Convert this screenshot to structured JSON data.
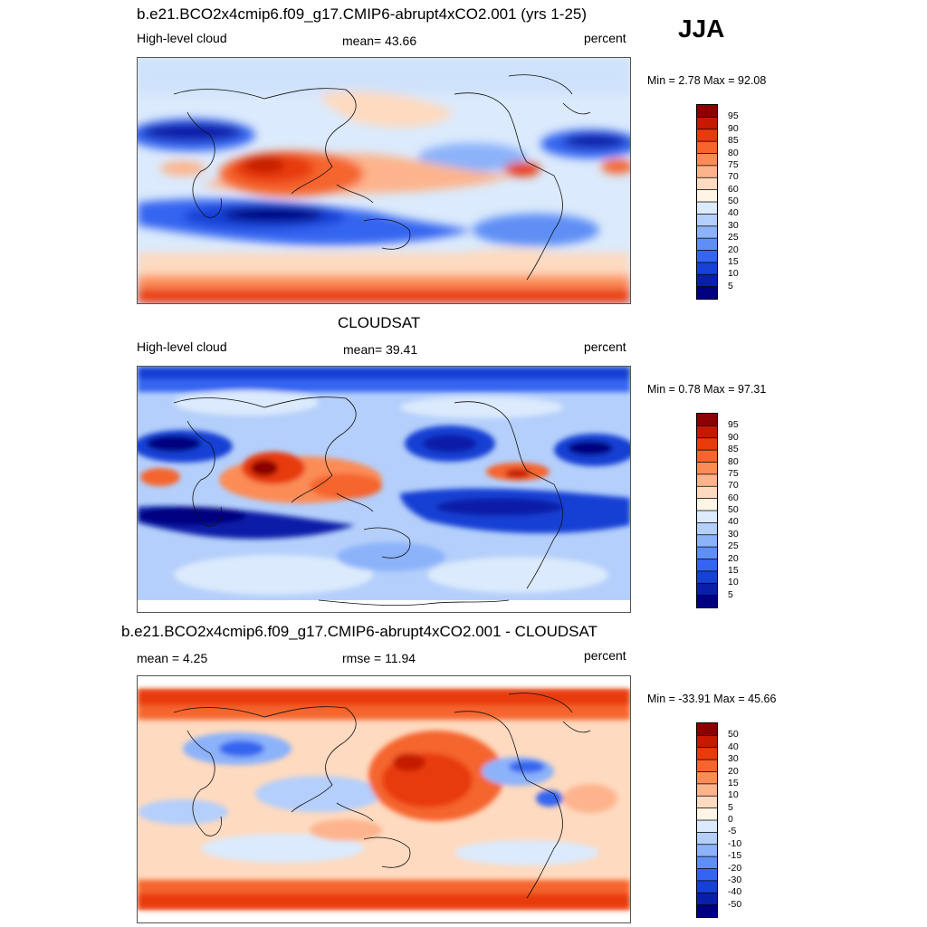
{
  "season": "JJA",
  "panels": [
    {
      "title": "b.e21.BCO2x4cmip6.f09_g17.CMIP6-abrupt4xCO2.001 (yrs 1-25)",
      "left_label": "High-level cloud",
      "center_label": "mean=  43.66",
      "right_label": "percent",
      "minmax": "Min =   2.78 Max =  92.08",
      "levels": [
        "95",
        "90",
        "85",
        "80",
        "75",
        "70",
        "60",
        "50",
        "40",
        "30",
        "25",
        "20",
        "15",
        "10",
        "5"
      ],
      "colors": [
        "#8b0000",
        "#c41a00",
        "#e83b0c",
        "#f5652d",
        "#fb8c56",
        "#fdb48c",
        "#fedac0",
        "#fff5e6",
        "#dbeafc",
        "#b4cffb",
        "#8cb2fa",
        "#5f8ff5",
        "#3565f0",
        "#1740d4",
        "#0a1fa8",
        "#000080"
      ]
    },
    {
      "title": "CLOUDSAT",
      "left_label": "High-level cloud",
      "center_label": "mean=  39.41",
      "right_label": "percent",
      "minmax": "Min =   0.78 Max =  97.31",
      "levels": [
        "95",
        "90",
        "85",
        "80",
        "75",
        "70",
        "60",
        "50",
        "40",
        "30",
        "25",
        "20",
        "15",
        "10",
        "5"
      ],
      "colors": [
        "#8b0000",
        "#c41a00",
        "#e83b0c",
        "#f5652d",
        "#fb8c56",
        "#fdb48c",
        "#fedac0",
        "#fff5e6",
        "#dbeafc",
        "#b4cffb",
        "#8cb2fa",
        "#5f8ff5",
        "#3565f0",
        "#1740d4",
        "#0a1fa8",
        "#000080"
      ]
    },
    {
      "title": "b.e21.BCO2x4cmip6.f09_g17.CMIP6-abrupt4xCO2.001 - CLOUDSAT",
      "left_label": "mean =   4.25",
      "center_label": "rmse =  11.94",
      "right_label": "percent",
      "minmax": "Min = -33.91 Max =  45.66",
      "levels": [
        "50",
        "40",
        "30",
        "20",
        "15",
        "10",
        "5",
        "0",
        "-5",
        "-10",
        "-15",
        "-20",
        "-30",
        "-40",
        "-50"
      ],
      "colors": [
        "#8b0000",
        "#c41a00",
        "#e83b0c",
        "#f5652d",
        "#fb8c56",
        "#fdb48c",
        "#fedac0",
        "#fff5e6",
        "#dbeafc",
        "#b4cffb",
        "#8cb2fa",
        "#5f8ff5",
        "#3565f0",
        "#1740d4",
        "#0a1fa8",
        "#000080"
      ]
    }
  ]
}
